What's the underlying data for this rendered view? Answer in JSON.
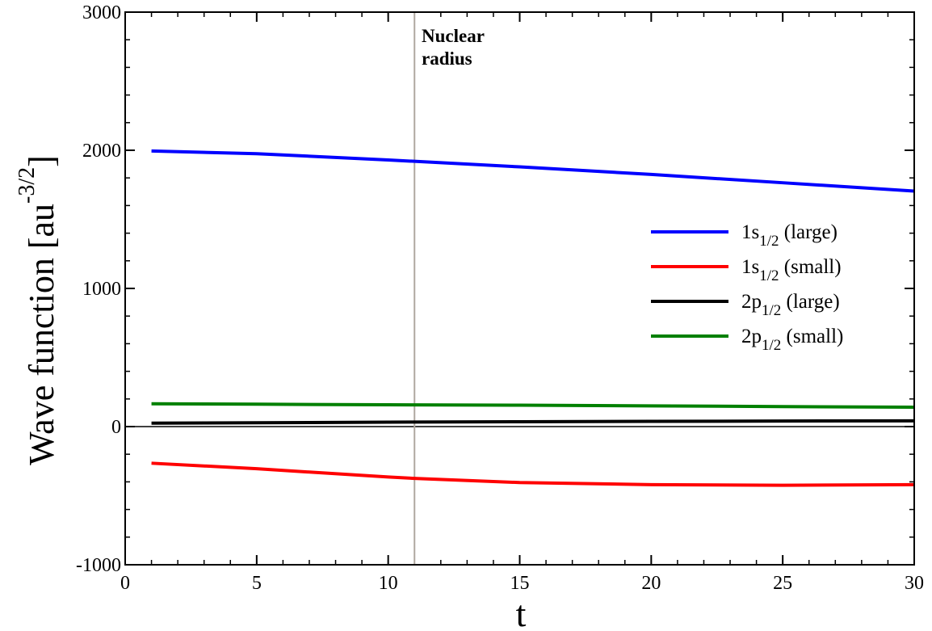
{
  "chart_data": {
    "type": "line",
    "title": "",
    "xlabel": "t",
    "ylabel": "Wave function [au",
    "ylabel_sup": "-3/2",
    "ylabel_close": "]",
    "xlim": [
      0,
      30
    ],
    "ylim": [
      -1000,
      3000
    ],
    "x_major_ticks": [
      0,
      5,
      10,
      15,
      20,
      25,
      30
    ],
    "x_tick_labels": [
      "0",
      "5",
      "10",
      "15",
      "20",
      "25",
      "30"
    ],
    "y_major_ticks": [
      -1000,
      0,
      1000,
      2000,
      3000
    ],
    "y_tick_labels": [
      "-1000",
      "0",
      "1000",
      "2000",
      "3000"
    ],
    "x_minor_step": 1,
    "y_minor_step": 200,
    "grid": false,
    "zero_line": true,
    "legend_position": "right",
    "vline": {
      "x": 11,
      "label_line1": "Nuclear",
      "label_line2": "radius",
      "color": "#b0a8a0"
    },
    "series": [
      {
        "name": "1s",
        "sub": "1/2",
        "suffix": " (large)",
        "color": "#0000ff",
        "x": [
          1,
          5,
          10,
          11,
          15,
          20,
          25,
          30
        ],
        "y": [
          1995,
          1975,
          1930,
          1920,
          1880,
          1825,
          1765,
          1705
        ]
      },
      {
        "name": "1s",
        "sub": "1/2",
        "suffix": " (small)",
        "color": "#ff0000",
        "x": [
          1,
          5,
          10,
          11,
          15,
          20,
          25,
          30
        ],
        "y": [
          -265,
          -305,
          -365,
          -375,
          -405,
          -420,
          -425,
          -420
        ]
      },
      {
        "name": "2p",
        "sub": "1/2",
        "suffix": " (large)",
        "color": "#000000",
        "x": [
          1,
          5,
          10,
          11,
          15,
          20,
          25,
          30
        ],
        "y": [
          25,
          28,
          32,
          33,
          35,
          38,
          40,
          42
        ]
      },
      {
        "name": "2p",
        "sub": "1/2",
        "suffix": " (small)",
        "color": "#008000",
        "x": [
          1,
          5,
          10,
          11,
          15,
          20,
          25,
          30
        ],
        "y": [
          165,
          162,
          158,
          157,
          155,
          150,
          145,
          140
        ]
      }
    ]
  }
}
